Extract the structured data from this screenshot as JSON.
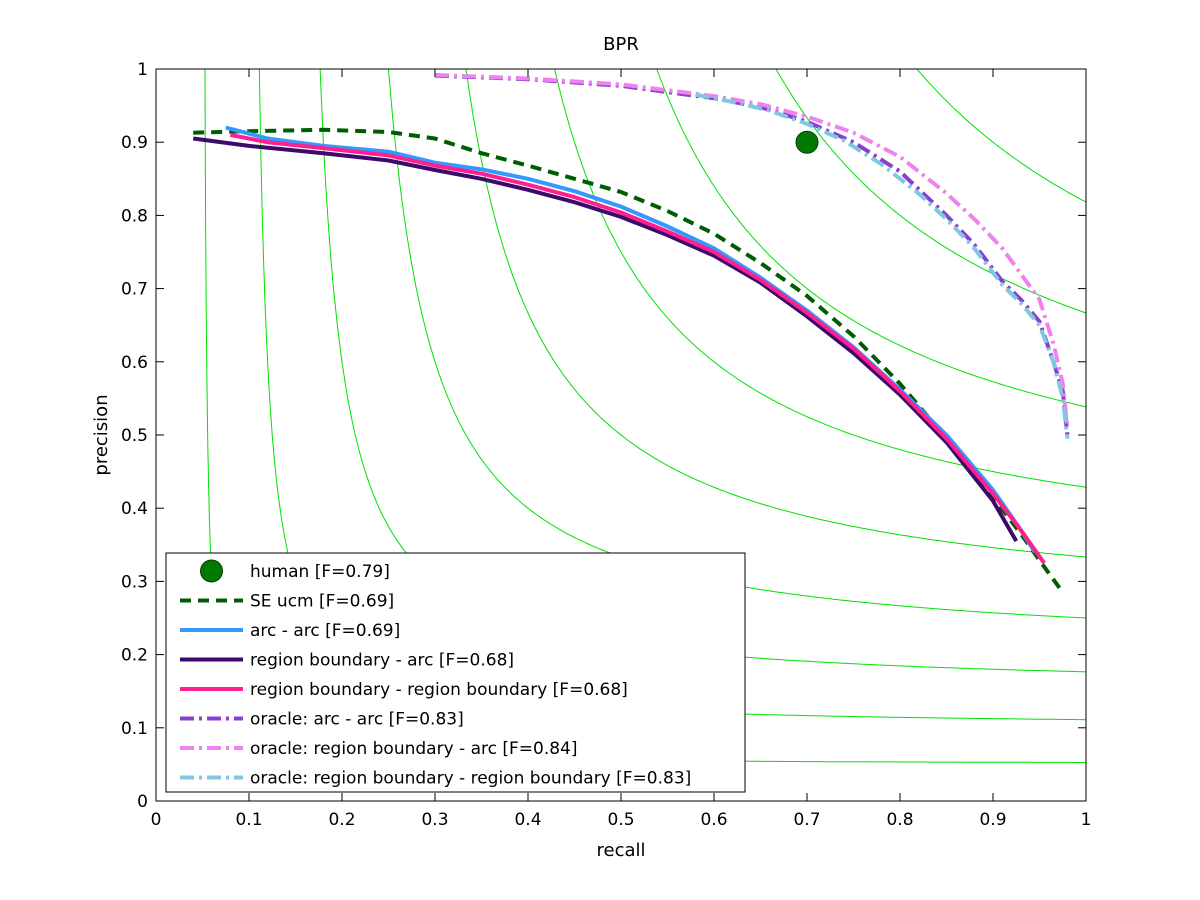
{
  "chart_data": {
    "type": "line",
    "title": "BPR",
    "xlabel": "recall",
    "ylabel": "precision",
    "xlim": [
      0,
      1
    ],
    "ylim": [
      0,
      1
    ],
    "xticks": [
      "0",
      "0.1",
      "0.2",
      "0.3",
      "0.4",
      "0.5",
      "0.6",
      "0.7",
      "0.8",
      "0.9",
      "1"
    ],
    "yticks": [
      "0",
      "0.1",
      "0.2",
      "0.3",
      "0.4",
      "0.5",
      "0.6",
      "0.7",
      "0.8",
      "0.9",
      "1"
    ],
    "grid": false,
    "iso_f_contours": [
      0.1,
      0.2,
      0.3,
      0.4,
      0.5,
      0.6,
      0.7,
      0.8,
      0.9
    ],
    "iso_f_color": "#00e000",
    "legend_placement": "bottom-left",
    "human": {
      "name": "human [F=0.79]",
      "x": 0.7,
      "y": 0.9,
      "color": "#007a00"
    },
    "series": [
      {
        "name": "SE ucm [F=0.69]",
        "color": "#005c00",
        "style": "dashed",
        "x": [
          0.04,
          0.1,
          0.18,
          0.25,
          0.3,
          0.35,
          0.4,
          0.45,
          0.5,
          0.55,
          0.6,
          0.65,
          0.7,
          0.75,
          0.8,
          0.85,
          0.9,
          0.93,
          0.955,
          0.975
        ],
        "y": [
          0.913,
          0.915,
          0.917,
          0.914,
          0.905,
          0.885,
          0.868,
          0.85,
          0.832,
          0.806,
          0.775,
          0.735,
          0.69,
          0.635,
          0.57,
          0.495,
          0.415,
          0.365,
          0.32,
          0.285
        ]
      },
      {
        "name": "arc - arc [F=0.69]",
        "color": "#3399ff",
        "style": "solid",
        "x": [
          0.075,
          0.12,
          0.18,
          0.25,
          0.3,
          0.35,
          0.4,
          0.45,
          0.5,
          0.55,
          0.6,
          0.65,
          0.7,
          0.75,
          0.8,
          0.85,
          0.9,
          0.93,
          0.945
        ],
        "y": [
          0.92,
          0.905,
          0.895,
          0.887,
          0.872,
          0.863,
          0.85,
          0.833,
          0.812,
          0.785,
          0.755,
          0.715,
          0.67,
          0.62,
          0.562,
          0.5,
          0.425,
          0.37,
          0.34
        ]
      },
      {
        "name": "region boundary - arc [F=0.68]",
        "color": "#3d0a6b",
        "style": "solid",
        "x": [
          0.04,
          0.1,
          0.18,
          0.25,
          0.3,
          0.35,
          0.4,
          0.45,
          0.5,
          0.55,
          0.6,
          0.65,
          0.7,
          0.75,
          0.8,
          0.85,
          0.9,
          0.925
        ],
        "y": [
          0.905,
          0.895,
          0.885,
          0.875,
          0.862,
          0.85,
          0.835,
          0.818,
          0.798,
          0.773,
          0.745,
          0.708,
          0.662,
          0.612,
          0.555,
          0.49,
          0.41,
          0.355
        ]
      },
      {
        "name": "region boundary - region boundary [F=0.68]",
        "color": "#ff1f8f",
        "style": "solid",
        "x": [
          0.08,
          0.12,
          0.18,
          0.25,
          0.3,
          0.35,
          0.4,
          0.45,
          0.5,
          0.55,
          0.6,
          0.65,
          0.7,
          0.75,
          0.8,
          0.85,
          0.9,
          0.93,
          0.955
        ],
        "y": [
          0.91,
          0.9,
          0.892,
          0.882,
          0.868,
          0.857,
          0.842,
          0.825,
          0.804,
          0.778,
          0.75,
          0.712,
          0.667,
          0.618,
          0.56,
          0.495,
          0.42,
          0.37,
          0.325
        ]
      },
      {
        "name": "oracle: arc - arc [F=0.83]",
        "color": "#8a3fd0",
        "style": "dashdot",
        "x": [
          0.3,
          0.4,
          0.5,
          0.6,
          0.65,
          0.7,
          0.75,
          0.8,
          0.85,
          0.88,
          0.91,
          0.93,
          0.95,
          0.965,
          0.975,
          0.98
        ],
        "y": [
          0.991,
          0.986,
          0.977,
          0.96,
          0.948,
          0.928,
          0.9,
          0.86,
          0.8,
          0.76,
          0.71,
          0.685,
          0.655,
          0.6,
          0.56,
          0.5
        ]
      },
      {
        "name": "oracle: region boundary - arc [F=0.84]",
        "color": "#ee82ee",
        "style": "dashdot",
        "x": [
          0.3,
          0.4,
          0.5,
          0.6,
          0.65,
          0.7,
          0.75,
          0.8,
          0.85,
          0.88,
          0.91,
          0.93,
          0.95,
          0.965,
          0.975,
          0.98
        ],
        "y": [
          0.992,
          0.987,
          0.979,
          0.963,
          0.952,
          0.935,
          0.913,
          0.88,
          0.83,
          0.795,
          0.755,
          0.72,
          0.685,
          0.625,
          0.57,
          0.51
        ]
      },
      {
        "name": "oracle: region boundary - region boundary [F=0.83]",
        "color": "#7ec8e3",
        "style": "dashdot",
        "x": [
          0.58,
          0.62,
          0.66,
          0.7,
          0.74,
          0.78,
          0.82,
          0.85,
          0.88,
          0.91,
          0.93,
          0.95,
          0.965,
          0.975,
          0.98
        ],
        "y": [
          0.965,
          0.955,
          0.943,
          0.925,
          0.902,
          0.87,
          0.83,
          0.795,
          0.755,
          0.705,
          0.68,
          0.65,
          0.6,
          0.55,
          0.495
        ]
      }
    ]
  }
}
